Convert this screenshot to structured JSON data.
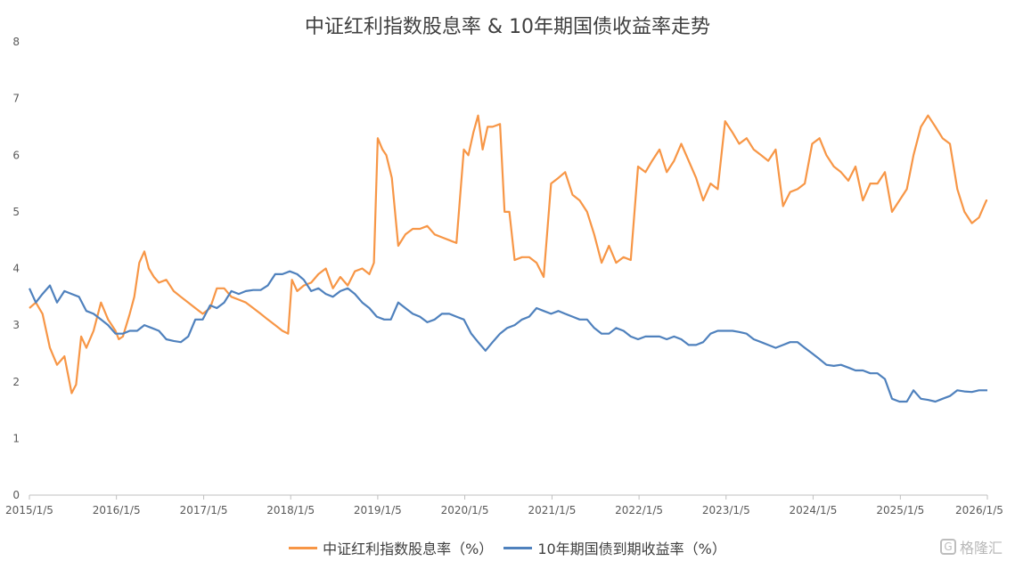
{
  "chart_data": {
    "type": "line",
    "title": "中证红利指数股息率 & 10年期国债收益率走势",
    "xlabel": "",
    "ylabel": "",
    "ylim": [
      0,
      8
    ],
    "yticks": [
      "0",
      "1",
      "2",
      "3",
      "4",
      "5",
      "6",
      "7",
      "8"
    ],
    "xticks": [
      "2015/1/5",
      "2016/1/5",
      "2017/1/5",
      "2018/1/5",
      "2019/1/5",
      "2020/1/5",
      "2021/1/5",
      "2022/1/5",
      "2023/1/5",
      "2024/1/5",
      "2025/1/5",
      "2026/1/5"
    ],
    "grid": false,
    "legend_position": "bottom",
    "series": [
      {
        "name": "中证红利指数股息率（%）",
        "color": "#F79646",
        "points": [
          [
            "2015/1/5",
            3.3
          ],
          [
            "2015/2/1",
            3.4
          ],
          [
            "2015/3/1",
            3.2
          ],
          [
            "2015/4/1",
            2.6
          ],
          [
            "2015/5/1",
            2.3
          ],
          [
            "2015/6/1",
            2.45
          ],
          [
            "2015/7/1",
            1.8
          ],
          [
            "2015/7/20",
            1.95
          ],
          [
            "2015/8/10",
            2.8
          ],
          [
            "2015/9/1",
            2.6
          ],
          [
            "2015/10/1",
            2.9
          ],
          [
            "2015/11/1",
            3.4
          ],
          [
            "2015/12/1",
            3.1
          ],
          [
            "2016/1/1",
            2.9
          ],
          [
            "2016/1/15",
            2.75
          ],
          [
            "2016/2/1",
            2.8
          ],
          [
            "2016/3/1",
            3.2
          ],
          [
            "2016/3/20",
            3.5
          ],
          [
            "2016/4/10",
            4.1
          ],
          [
            "2016/5/1",
            4.3
          ],
          [
            "2016/5/20",
            4.0
          ],
          [
            "2016/6/10",
            3.85
          ],
          [
            "2016/7/1",
            3.75
          ],
          [
            "2016/8/1",
            3.8
          ],
          [
            "2016/9/1",
            3.6
          ],
          [
            "2016/10/1",
            3.5
          ],
          [
            "2016/11/1",
            3.4
          ],
          [
            "2016/12/1",
            3.3
          ],
          [
            "2017/1/1",
            3.2
          ],
          [
            "2017/2/1",
            3.3
          ],
          [
            "2017/3/1",
            3.65
          ],
          [
            "2017/4/1",
            3.65
          ],
          [
            "2017/5/1",
            3.5
          ],
          [
            "2017/6/1",
            3.45
          ],
          [
            "2017/7/1",
            3.4
          ],
          [
            "2017/8/1",
            3.3
          ],
          [
            "2017/9/1",
            3.2
          ],
          [
            "2017/10/1",
            3.1
          ],
          [
            "2017/11/1",
            3.0
          ],
          [
            "2017/12/1",
            2.9
          ],
          [
            "2017/12/25",
            2.85
          ],
          [
            "2018/1/10",
            3.8
          ],
          [
            "2018/2/1",
            3.6
          ],
          [
            "2018/3/1",
            3.7
          ],
          [
            "2018/4/1",
            3.75
          ],
          [
            "2018/5/1",
            3.9
          ],
          [
            "2018/6/1",
            4.0
          ],
          [
            "2018/7/1",
            3.65
          ],
          [
            "2018/8/1",
            3.85
          ],
          [
            "2018/9/1",
            3.7
          ],
          [
            "2018/10/1",
            3.95
          ],
          [
            "2018/11/1",
            4.0
          ],
          [
            "2018/12/1",
            3.9
          ],
          [
            "2018/12/20",
            4.1
          ],
          [
            "2019/1/5",
            6.3
          ],
          [
            "2019/1/25",
            6.1
          ],
          [
            "2019/2/10",
            6.0
          ],
          [
            "2019/3/5",
            5.6
          ],
          [
            "2019/4/1",
            4.4
          ],
          [
            "2019/5/1",
            4.6
          ],
          [
            "2019/6/1",
            4.7
          ],
          [
            "2019/7/1",
            4.7
          ],
          [
            "2019/8/1",
            4.75
          ],
          [
            "2019/9/1",
            4.6
          ],
          [
            "2019/10/1",
            4.55
          ],
          [
            "2019/11/1",
            4.5
          ],
          [
            "2019/12/1",
            4.45
          ],
          [
            "2020/1/1",
            6.1
          ],
          [
            "2020/1/20",
            6.0
          ],
          [
            "2020/2/10",
            6.4
          ],
          [
            "2020/3/1",
            6.7
          ],
          [
            "2020/3/20",
            6.1
          ],
          [
            "2020/4/10",
            6.5
          ],
          [
            "2020/5/1",
            6.5
          ],
          [
            "2020/6/1",
            6.55
          ],
          [
            "2020/6/20",
            5.0
          ],
          [
            "2020/7/10",
            5.0
          ],
          [
            "2020/8/1",
            4.15
          ],
          [
            "2020/9/1",
            4.2
          ],
          [
            "2020/10/1",
            4.2
          ],
          [
            "2020/11/1",
            4.1
          ],
          [
            "2020/12/1",
            3.85
          ],
          [
            "2021/1/1",
            5.5
          ],
          [
            "2021/2/1",
            5.6
          ],
          [
            "2021/3/1",
            5.7
          ],
          [
            "2021/4/1",
            5.3
          ],
          [
            "2021/5/1",
            5.2
          ],
          [
            "2021/6/1",
            5.0
          ],
          [
            "2021/7/1",
            4.6
          ],
          [
            "2021/8/1",
            4.1
          ],
          [
            "2021/9/1",
            4.4
          ],
          [
            "2021/10/1",
            4.1
          ],
          [
            "2021/11/1",
            4.2
          ],
          [
            "2021/12/1",
            4.15
          ],
          [
            "2022/1/1",
            5.8
          ],
          [
            "2022/2/1",
            5.7
          ],
          [
            "2022/3/1",
            5.9
          ],
          [
            "2022/4/1",
            6.1
          ],
          [
            "2022/5/1",
            5.7
          ],
          [
            "2022/6/1",
            5.9
          ],
          [
            "2022/7/1",
            6.2
          ],
          [
            "2022/8/1",
            5.9
          ],
          [
            "2022/9/1",
            5.6
          ],
          [
            "2022/10/1",
            5.2
          ],
          [
            "2022/11/1",
            5.5
          ],
          [
            "2022/12/1",
            5.4
          ],
          [
            "2023/1/1",
            6.6
          ],
          [
            "2023/2/1",
            6.4
          ],
          [
            "2023/3/1",
            6.2
          ],
          [
            "2023/4/1",
            6.3
          ],
          [
            "2023/5/1",
            6.1
          ],
          [
            "2023/6/1",
            6.0
          ],
          [
            "2023/7/1",
            5.9
          ],
          [
            "2023/8/1",
            6.1
          ],
          [
            "2023/9/1",
            5.1
          ],
          [
            "2023/10/1",
            5.35
          ],
          [
            "2023/11/1",
            5.4
          ],
          [
            "2023/12/1",
            5.5
          ],
          [
            "2024/1/1",
            6.2
          ],
          [
            "2024/2/1",
            6.3
          ],
          [
            "2024/3/1",
            6.0
          ],
          [
            "2024/4/1",
            5.8
          ],
          [
            "2024/5/1",
            5.7
          ],
          [
            "2024/6/1",
            5.55
          ],
          [
            "2024/7/1",
            5.8
          ],
          [
            "2024/8/1",
            5.2
          ],
          [
            "2024/9/1",
            5.5
          ],
          [
            "2024/10/1",
            5.5
          ],
          [
            "2024/11/1",
            5.7
          ],
          [
            "2024/12/1",
            5.0
          ],
          [
            "2025/1/1",
            5.2
          ],
          [
            "2025/2/1",
            5.4
          ],
          [
            "2025/3/1",
            6.0
          ],
          [
            "2025/4/1",
            6.5
          ],
          [
            "2025/5/1",
            6.7
          ],
          [
            "2025/6/1",
            6.5
          ],
          [
            "2025/7/1",
            6.3
          ],
          [
            "2025/8/1",
            6.2
          ],
          [
            "2025/9/1",
            5.4
          ],
          [
            "2025/10/1",
            5.0
          ],
          [
            "2025/11/1",
            4.8
          ],
          [
            "2025/12/1",
            4.9
          ],
          [
            "2026/1/1",
            5.2
          ],
          [
            "2026/1/5",
            5.2
          ]
        ]
      },
      {
        "name": "10年期国债到期收益率（%）",
        "color": "#4F81BD",
        "points": [
          [
            "2015/1/5",
            3.65
          ],
          [
            "2015/2/1",
            3.4
          ],
          [
            "2015/3/1",
            3.55
          ],
          [
            "2015/4/1",
            3.7
          ],
          [
            "2015/5/1",
            3.4
          ],
          [
            "2015/6/1",
            3.6
          ],
          [
            "2015/7/1",
            3.55
          ],
          [
            "2015/8/1",
            3.5
          ],
          [
            "2015/9/1",
            3.25
          ],
          [
            "2015/10/1",
            3.2
          ],
          [
            "2015/11/1",
            3.1
          ],
          [
            "2015/12/1",
            3.0
          ],
          [
            "2016/1/1",
            2.85
          ],
          [
            "2016/2/1",
            2.85
          ],
          [
            "2016/3/1",
            2.9
          ],
          [
            "2016/4/1",
            2.9
          ],
          [
            "2016/5/1",
            3.0
          ],
          [
            "2016/6/1",
            2.95
          ],
          [
            "2016/7/1",
            2.9
          ],
          [
            "2016/8/1",
            2.75
          ],
          [
            "2016/9/1",
            2.72
          ],
          [
            "2016/10/1",
            2.7
          ],
          [
            "2016/11/1",
            2.8
          ],
          [
            "2016/12/1",
            3.1
          ],
          [
            "2017/1/1",
            3.1
          ],
          [
            "2017/2/1",
            3.35
          ],
          [
            "2017/3/1",
            3.3
          ],
          [
            "2017/4/1",
            3.4
          ],
          [
            "2017/5/1",
            3.6
          ],
          [
            "2017/6/1",
            3.55
          ],
          [
            "2017/7/1",
            3.6
          ],
          [
            "2017/8/1",
            3.62
          ],
          [
            "2017/9/1",
            3.62
          ],
          [
            "2017/10/1",
            3.7
          ],
          [
            "2017/11/1",
            3.9
          ],
          [
            "2017/12/1",
            3.9
          ],
          [
            "2018/1/1",
            3.95
          ],
          [
            "2018/2/1",
            3.9
          ],
          [
            "2018/3/1",
            3.8
          ],
          [
            "2018/4/1",
            3.6
          ],
          [
            "2018/5/1",
            3.65
          ],
          [
            "2018/6/1",
            3.55
          ],
          [
            "2018/7/1",
            3.5
          ],
          [
            "2018/8/1",
            3.6
          ],
          [
            "2018/9/1",
            3.65
          ],
          [
            "2018/10/1",
            3.55
          ],
          [
            "2018/11/1",
            3.4
          ],
          [
            "2018/12/1",
            3.3
          ],
          [
            "2019/1/1",
            3.15
          ],
          [
            "2019/2/1",
            3.1
          ],
          [
            "2019/3/1",
            3.1
          ],
          [
            "2019/4/1",
            3.4
          ],
          [
            "2019/5/1",
            3.3
          ],
          [
            "2019/6/1",
            3.2
          ],
          [
            "2019/7/1",
            3.15
          ],
          [
            "2019/8/1",
            3.05
          ],
          [
            "2019/9/1",
            3.1
          ],
          [
            "2019/10/1",
            3.2
          ],
          [
            "2019/11/1",
            3.2
          ],
          [
            "2019/12/1",
            3.15
          ],
          [
            "2020/1/1",
            3.1
          ],
          [
            "2020/2/1",
            2.85
          ],
          [
            "2020/3/1",
            2.7
          ],
          [
            "2020/4/1",
            2.55
          ],
          [
            "2020/5/1",
            2.7
          ],
          [
            "2020/6/1",
            2.85
          ],
          [
            "2020/7/1",
            2.95
          ],
          [
            "2020/8/1",
            3.0
          ],
          [
            "2020/9/1",
            3.1
          ],
          [
            "2020/10/1",
            3.15
          ],
          [
            "2020/11/1",
            3.3
          ],
          [
            "2020/12/1",
            3.25
          ],
          [
            "2021/1/1",
            3.2
          ],
          [
            "2021/2/1",
            3.25
          ],
          [
            "2021/3/1",
            3.2
          ],
          [
            "2021/4/1",
            3.15
          ],
          [
            "2021/5/1",
            3.1
          ],
          [
            "2021/6/1",
            3.1
          ],
          [
            "2021/7/1",
            2.95
          ],
          [
            "2021/8/1",
            2.85
          ],
          [
            "2021/9/1",
            2.85
          ],
          [
            "2021/10/1",
            2.95
          ],
          [
            "2021/11/1",
            2.9
          ],
          [
            "2021/12/1",
            2.8
          ],
          [
            "2022/1/1",
            2.75
          ],
          [
            "2022/2/1",
            2.8
          ],
          [
            "2022/3/1",
            2.8
          ],
          [
            "2022/4/1",
            2.8
          ],
          [
            "2022/5/1",
            2.75
          ],
          [
            "2022/6/1",
            2.8
          ],
          [
            "2022/7/1",
            2.75
          ],
          [
            "2022/8/1",
            2.65
          ],
          [
            "2022/9/1",
            2.65
          ],
          [
            "2022/10/1",
            2.7
          ],
          [
            "2022/11/1",
            2.85
          ],
          [
            "2022/12/1",
            2.9
          ],
          [
            "2023/1/1",
            2.9
          ],
          [
            "2023/2/1",
            2.9
          ],
          [
            "2023/3/1",
            2.88
          ],
          [
            "2023/4/1",
            2.85
          ],
          [
            "2023/5/1",
            2.75
          ],
          [
            "2023/6/1",
            2.7
          ],
          [
            "2023/7/1",
            2.65
          ],
          [
            "2023/8/1",
            2.6
          ],
          [
            "2023/9/1",
            2.65
          ],
          [
            "2023/10/1",
            2.7
          ],
          [
            "2023/11/1",
            2.7
          ],
          [
            "2023/12/1",
            2.6
          ],
          [
            "2024/1/1",
            2.5
          ],
          [
            "2024/2/1",
            2.4
          ],
          [
            "2024/3/1",
            2.3
          ],
          [
            "2024/4/1",
            2.28
          ],
          [
            "2024/5/1",
            2.3
          ],
          [
            "2024/6/1",
            2.25
          ],
          [
            "2024/7/1",
            2.2
          ],
          [
            "2024/8/1",
            2.2
          ],
          [
            "2024/9/1",
            2.15
          ],
          [
            "2024/10/1",
            2.15
          ],
          [
            "2024/11/1",
            2.05
          ],
          [
            "2024/12/1",
            1.7
          ],
          [
            "2025/1/1",
            1.65
          ],
          [
            "2025/2/1",
            1.65
          ],
          [
            "2025/3/1",
            1.85
          ],
          [
            "2025/4/1",
            1.7
          ],
          [
            "2025/5/1",
            1.68
          ],
          [
            "2025/6/1",
            1.65
          ],
          [
            "2025/7/1",
            1.7
          ],
          [
            "2025/8/1",
            1.75
          ],
          [
            "2025/9/1",
            1.85
          ],
          [
            "2025/10/1",
            1.83
          ],
          [
            "2025/11/1",
            1.82
          ],
          [
            "2025/12/1",
            1.85
          ],
          [
            "2026/1/5",
            1.85
          ]
        ]
      }
    ]
  },
  "legend": {
    "items": [
      {
        "label": "中证红利指数股息率（%）",
        "color": "#F79646"
      },
      {
        "label": "10年期国债到期收益率（%）",
        "color": "#4F81BD"
      }
    ]
  },
  "watermark": {
    "text": "格隆汇",
    "icon": "G"
  }
}
